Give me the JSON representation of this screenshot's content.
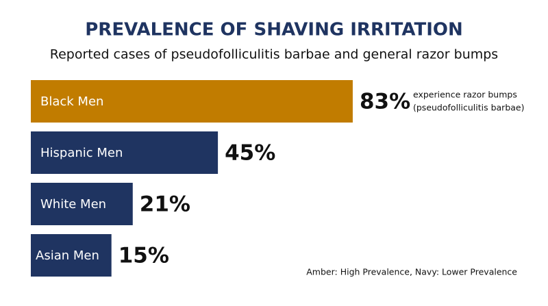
{
  "chart_data": {
    "type": "bar",
    "orientation": "horizontal",
    "title": "PREVALENCE OF SHAVING IRRITATION",
    "subtitle": "Reported cases of pseudofolliculitis barbae and general razor bumps",
    "categories": [
      "Black Men",
      "Hispanic Men",
      "White Men",
      "Asian Men"
    ],
    "values": [
      83,
      45,
      21,
      15
    ],
    "value_labels": [
      "83%",
      "45%",
      "21%",
      "15%"
    ],
    "colors": [
      "#c17c00",
      "#1f3461",
      "#1f3461",
      "#1f3461"
    ],
    "annotation": [
      "experience razor bumps",
      "(pseudofolliculitis barbae)"
    ],
    "note": "Amber: High Prevalence, Navy: Lower Prevalence"
  }
}
